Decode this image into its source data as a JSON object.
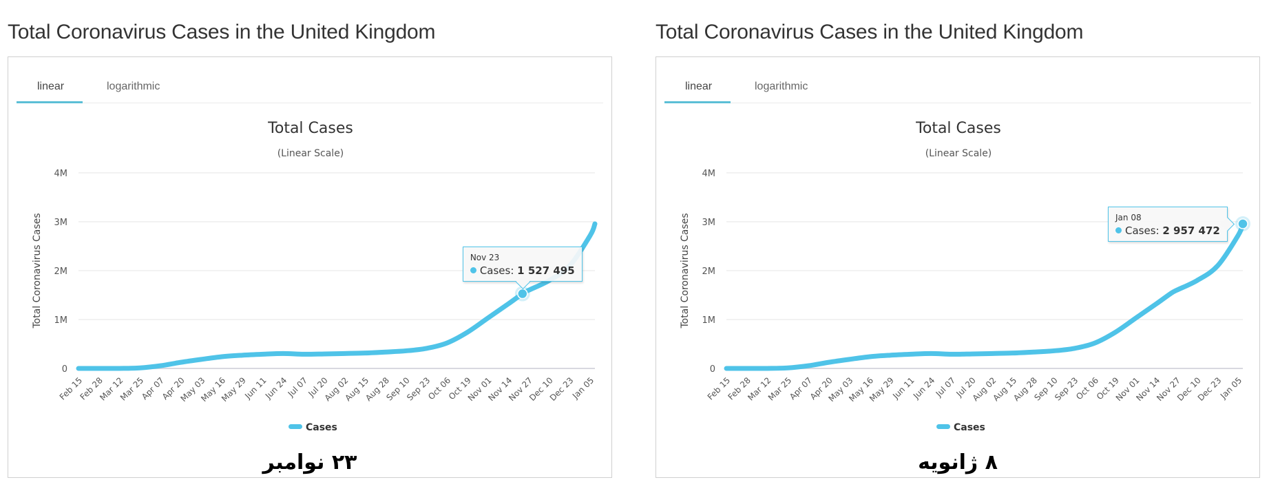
{
  "panels": [
    {
      "page_title": "Total Coronavirus Cases in the United Kingdom",
      "tabs": [
        {
          "label": "linear",
          "active": true
        },
        {
          "label": "logarithmic",
          "active": false
        }
      ],
      "caption": "۲۳ نوامبر",
      "tooltip": {
        "date": "Nov 23",
        "series_label": "Cases:",
        "value_text": "1 527 495",
        "x_date": "Nov 23",
        "value": 1527495
      }
    },
    {
      "page_title": "Total Coronavirus Cases in the United Kingdom",
      "tabs": [
        {
          "label": "linear",
          "active": true
        },
        {
          "label": "logarithmic",
          "active": false
        }
      ],
      "caption": "۸ ژانویه",
      "tooltip": {
        "date": "Jan 08",
        "series_label": "Cases:",
        "value_text": "2 957 472",
        "x_date": "Jan 08",
        "value": 2957472
      }
    }
  ],
  "colors": {
    "series": "#4fc3e8",
    "grid": "#e6e6e6",
    "axis_text": "#555555",
    "tab_underline": "#5bbfd6"
  },
  "chart_data": [
    {
      "type": "line",
      "title": "Total Cases",
      "subtitle": "(Linear Scale)",
      "xlabel": "",
      "ylabel": "Total Coronavirus Cases",
      "ylim": [
        0,
        4000000
      ],
      "yticks": [
        0,
        1000000,
        2000000,
        3000000,
        4000000
      ],
      "ytick_labels": [
        "0",
        "1M",
        "2M",
        "3M",
        "4M"
      ],
      "xtick_labels": [
        "Feb 15",
        "Feb 28",
        "Mar 12",
        "Mar 25",
        "Apr 07",
        "Apr 20",
        "May 03",
        "May 16",
        "May 29",
        "Jun 11",
        "Jun 24",
        "Jul 07",
        "Jul 20",
        "Aug 02",
        "Aug 15",
        "Aug 28",
        "Sep 10",
        "Sep 23",
        "Oct 06",
        "Oct 19",
        "Nov 01",
        "Nov 14",
        "Nov 27",
        "Dec 10",
        "Dec 23",
        "Jan 05"
      ],
      "grid": true,
      "legend": {
        "position": "bottom-center",
        "entries": [
          "Cases"
        ]
      },
      "series": [
        {
          "name": "Cases",
          "x": [
            "Feb 15",
            "Feb 28",
            "Mar 12",
            "Mar 25",
            "Apr 07",
            "Apr 20",
            "May 03",
            "May 16",
            "May 29",
            "Jun 11",
            "Jun 24",
            "Jul 07",
            "Jul 20",
            "Aug 02",
            "Aug 15",
            "Aug 28",
            "Sep 10",
            "Sep 23",
            "Oct 06",
            "Oct 19",
            "Nov 01",
            "Nov 14",
            "Nov 23",
            "Nov 27",
            "Dec 10",
            "Dec 23",
            "Jan 05",
            "Jan 08"
          ],
          "values": [
            9,
            23,
            600,
            11000,
            55000,
            125000,
            185000,
            240000,
            270000,
            290000,
            305000,
            290000,
            296000,
            305000,
            315000,
            335000,
            360000,
            410000,
            520000,
            740000,
            1030000,
            1320000,
            1527495,
            1600000,
            1800000,
            2100000,
            2720000,
            2957472
          ]
        }
      ],
      "highlight": {
        "x": "Nov 23",
        "value": 1527495
      }
    },
    {
      "type": "line",
      "title": "Total Cases",
      "subtitle": "(Linear Scale)",
      "xlabel": "",
      "ylabel": "Total Coronavirus Cases",
      "ylim": [
        0,
        4000000
      ],
      "yticks": [
        0,
        1000000,
        2000000,
        3000000,
        4000000
      ],
      "ytick_labels": [
        "0",
        "1M",
        "2M",
        "3M",
        "4M"
      ],
      "xtick_labels": [
        "Feb 15",
        "Feb 28",
        "Mar 12",
        "Mar 25",
        "Apr 07",
        "Apr 20",
        "May 03",
        "May 16",
        "May 29",
        "Jun 11",
        "Jun 24",
        "Jul 07",
        "Jul 20",
        "Aug 02",
        "Aug 15",
        "Aug 28",
        "Sep 10",
        "Sep 23",
        "Oct 06",
        "Oct 19",
        "Nov 01",
        "Nov 14",
        "Nov 27",
        "Dec 10",
        "Dec 23",
        "Jan 05"
      ],
      "grid": true,
      "legend": {
        "position": "bottom-center",
        "entries": [
          "Cases"
        ]
      },
      "series": [
        {
          "name": "Cases",
          "x": [
            "Feb 15",
            "Feb 28",
            "Mar 12",
            "Mar 25",
            "Apr 07",
            "Apr 20",
            "May 03",
            "May 16",
            "May 29",
            "Jun 11",
            "Jun 24",
            "Jul 07",
            "Jul 20",
            "Aug 02",
            "Aug 15",
            "Aug 28",
            "Sep 10",
            "Sep 23",
            "Oct 06",
            "Oct 19",
            "Nov 01",
            "Nov 14",
            "Nov 23",
            "Nov 27",
            "Dec 10",
            "Dec 23",
            "Jan 05",
            "Jan 08"
          ],
          "values": [
            9,
            23,
            600,
            11000,
            55000,
            125000,
            185000,
            240000,
            270000,
            290000,
            305000,
            290000,
            296000,
            305000,
            315000,
            335000,
            360000,
            410000,
            520000,
            740000,
            1030000,
            1320000,
            1527495,
            1600000,
            1800000,
            2100000,
            2720000,
            2957472
          ]
        }
      ],
      "highlight": {
        "x": "Jan 08",
        "value": 2957472
      }
    }
  ]
}
